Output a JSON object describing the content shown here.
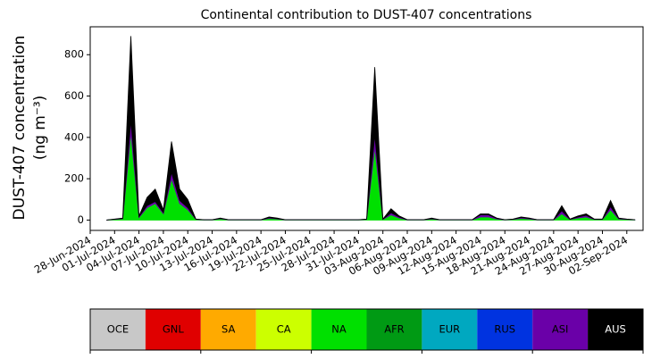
{
  "chart_data": {
    "type": "stacked-area",
    "title": "Continental contribution to DUST-407 concentrations",
    "ylabel": [
      "DUST-407 concentration",
      "(ng m⁻³)"
    ],
    "x": [
      "2024-06-30",
      "2024-07-01",
      "2024-07-02",
      "2024-07-03",
      "2024-07-04",
      "2024-07-05",
      "2024-07-06",
      "2024-07-07",
      "2024-07-08",
      "2024-07-09",
      "2024-07-10",
      "2024-07-11",
      "2024-07-12",
      "2024-07-13",
      "2024-07-14",
      "2024-07-15",
      "2024-07-16",
      "2024-07-17",
      "2024-07-18",
      "2024-07-19",
      "2024-07-20",
      "2024-07-21",
      "2024-07-22",
      "2024-07-23",
      "2024-07-24",
      "2024-07-25",
      "2024-07-26",
      "2024-07-27",
      "2024-07-28",
      "2024-07-29",
      "2024-07-30",
      "2024-07-31",
      "2024-08-01",
      "2024-08-02",
      "2024-08-03",
      "2024-08-04",
      "2024-08-05",
      "2024-08-06",
      "2024-08-07",
      "2024-08-08",
      "2024-08-09",
      "2024-08-10",
      "2024-08-11",
      "2024-08-12",
      "2024-08-13",
      "2024-08-14",
      "2024-08-15",
      "2024-08-16",
      "2024-08-17",
      "2024-08-18",
      "2024-08-19",
      "2024-08-20",
      "2024-08-21",
      "2024-08-22",
      "2024-08-23",
      "2024-08-24",
      "2024-08-25",
      "2024-08-26",
      "2024-08-27",
      "2024-08-28",
      "2024-08-29",
      "2024-08-30",
      "2024-08-31",
      "2024-09-01",
      "2024-09-02",
      "2024-09-03"
    ],
    "series": [
      {
        "name": "NA",
        "color": "#00e000",
        "values": [
          0,
          3,
          6,
          420,
          12,
          60,
          80,
          30,
          200,
          80,
          50,
          3,
          1,
          1,
          6,
          1,
          1,
          1,
          1,
          1,
          8,
          5,
          1,
          1,
          1,
          1,
          1,
          1,
          1,
          1,
          1,
          1,
          3,
          350,
          3,
          25,
          10,
          1,
          1,
          1,
          5,
          1,
          1,
          1,
          1,
          1,
          15,
          15,
          5,
          1,
          3,
          8,
          5,
          1,
          1,
          1,
          30,
          3,
          10,
          15,
          3,
          3,
          50,
          5,
          3,
          1
        ]
      },
      {
        "name": "ASI",
        "color": "#6a00a8",
        "values": [
          0,
          1,
          2,
          60,
          4,
          10,
          10,
          5,
          30,
          15,
          10,
          1,
          1,
          1,
          2,
          1,
          1,
          1,
          1,
          1,
          3,
          2,
          1,
          1,
          1,
          1,
          1,
          1,
          1,
          1,
          1,
          1,
          1,
          60,
          1,
          10,
          5,
          1,
          1,
          1,
          2,
          1,
          1,
          1,
          1,
          1,
          10,
          10,
          3,
          1,
          1,
          4,
          3,
          1,
          1,
          1,
          15,
          1,
          5,
          8,
          1,
          1,
          15,
          3,
          1,
          1
        ]
      },
      {
        "name": "AUS",
        "color": "#000000",
        "values": [
          0,
          1,
          2,
          410,
          4,
          40,
          60,
          15,
          150,
          55,
          40,
          1,
          0,
          0,
          2,
          0,
          0,
          0,
          0,
          0,
          4,
          3,
          0,
          0,
          0,
          0,
          0,
          0,
          0,
          0,
          0,
          0,
          1,
          330,
          1,
          20,
          5,
          0,
          0,
          0,
          3,
          0,
          0,
          0,
          0,
          0,
          5,
          5,
          2,
          0,
          1,
          3,
          2,
          0,
          0,
          0,
          25,
          1,
          5,
          7,
          1,
          1,
          30,
          2,
          1,
          0
        ]
      }
    ],
    "xlim": [
      "2024-06-28",
      "2024-09-04"
    ],
    "xticks": [
      {
        "value": "2024-06-28",
        "label": "28-Jun-2024"
      },
      {
        "value": "2024-07-01",
        "label": "01-Jul-2024"
      },
      {
        "value": "2024-07-04",
        "label": "04-Jul-2024"
      },
      {
        "value": "2024-07-07",
        "label": "07-Jul-2024"
      },
      {
        "value": "2024-07-10",
        "label": "10-Jul-2024"
      },
      {
        "value": "2024-07-13",
        "label": "13-Jul-2024"
      },
      {
        "value": "2024-07-16",
        "label": "16-Jul-2024"
      },
      {
        "value": "2024-07-19",
        "label": "19-Jul-2024"
      },
      {
        "value": "2024-07-22",
        "label": "22-Jul-2024"
      },
      {
        "value": "2024-07-25",
        "label": "25-Jul-2024"
      },
      {
        "value": "2024-07-28",
        "label": "28-Jul-2024"
      },
      {
        "value": "2024-07-31",
        "label": "31-Jul-2024"
      },
      {
        "value": "2024-08-03",
        "label": "03-Aug-2024"
      },
      {
        "value": "2024-08-06",
        "label": "06-Aug-2024"
      },
      {
        "value": "2024-08-09",
        "label": "09-Aug-2024"
      },
      {
        "value": "2024-08-12",
        "label": "12-Aug-2024"
      },
      {
        "value": "2024-08-15",
        "label": "15-Aug-2024"
      },
      {
        "value": "2024-08-18",
        "label": "18-Aug-2024"
      },
      {
        "value": "2024-08-21",
        "label": "21-Aug-2024"
      },
      {
        "value": "2024-08-24",
        "label": "24-Aug-2024"
      },
      {
        "value": "2024-08-27",
        "label": "27-Aug-2024"
      },
      {
        "value": "2024-08-30",
        "label": "30-Aug-2024"
      },
      {
        "value": "2024-09-02",
        "label": "02-Sep-2024"
      }
    ],
    "ylim": [
      -50,
      935
    ],
    "yticks": [
      0,
      200,
      400,
      600,
      800
    ],
    "colorbar": [
      {
        "name": "OCE",
        "color": "#c8c8c8",
        "text_color": "#000000"
      },
      {
        "name": "GNL",
        "color": "#e00000",
        "text_color": "#000000"
      },
      {
        "name": "SA",
        "color": "#ffaa00",
        "text_color": "#000000"
      },
      {
        "name": "CA",
        "color": "#ccff00",
        "text_color": "#000000"
      },
      {
        "name": "NA",
        "color": "#00e000",
        "text_color": "#000000"
      },
      {
        "name": "AFR",
        "color": "#009a14",
        "text_color": "#000000"
      },
      {
        "name": "EUR",
        "color": "#00a8c0",
        "text_color": "#000000"
      },
      {
        "name": "RUS",
        "color": "#0033e0",
        "text_color": "#000000"
      },
      {
        "name": "ASI",
        "color": "#6a00a8",
        "text_color": "#000000"
      },
      {
        "name": "AUS",
        "color": "#000000",
        "text_color": "#ffffff"
      }
    ]
  }
}
